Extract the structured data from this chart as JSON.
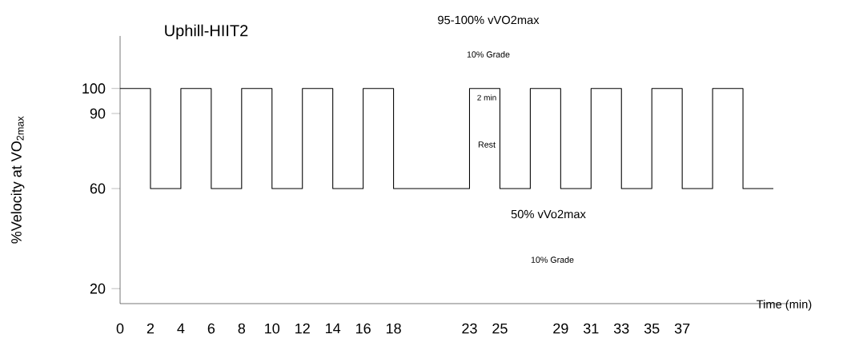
{
  "chart_data": {
    "type": "step",
    "title": "Uphill-HIIT2",
    "xlabel": "Time (min)",
    "ylabel": "%Velocity at VO$_{2max}$",
    "x": [
      0,
      2,
      4,
      6,
      8,
      10,
      12,
      14,
      16,
      18,
      23,
      25,
      27,
      29,
      31,
      33,
      35,
      37,
      39,
      41,
      43
    ],
    "values": [
      100,
      60,
      100,
      60,
      100,
      60,
      100,
      60,
      100,
      60,
      100,
      60,
      100,
      60,
      100,
      60,
      100,
      60,
      100,
      60,
      60
    ],
    "color": "#000000",
    "xlim": [
      0,
      44
    ],
    "ylim": [
      14,
      121
    ],
    "xticks": [
      0,
      2,
      4,
      6,
      8,
      10,
      12,
      14,
      16,
      18,
      23,
      25,
      29,
      31,
      33,
      35,
      37
    ],
    "yticks": [
      20,
      60,
      90,
      100
    ],
    "annotations": [
      "95-100% vVO2max",
      "10% Grade",
      "2 min",
      "Rest",
      "50% vVo2max",
      "10% Grade"
    ]
  }
}
